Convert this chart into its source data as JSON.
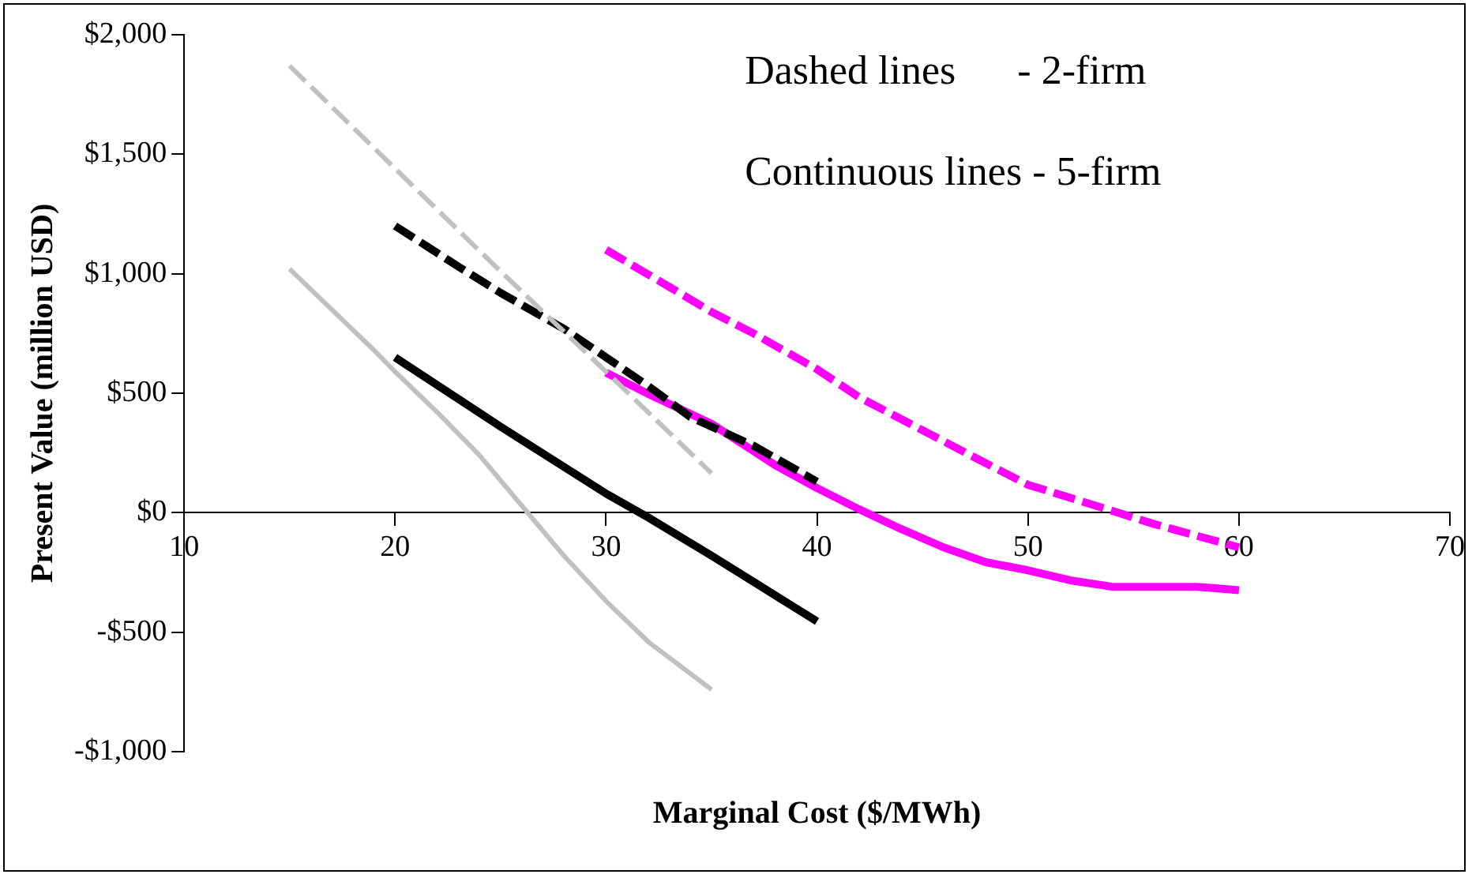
{
  "chart_data": {
    "type": "line",
    "xlabel": "Marginal Cost ($/MWh)",
    "ylabel": "Present Value (million USD)",
    "xlim": [
      10,
      70
    ],
    "xticks": [
      10,
      20,
      30,
      40,
      50,
      60,
      70
    ],
    "ylim": [
      -1000,
      2000
    ],
    "yticks": [
      {
        "value": -1000,
        "label": "-$1,000"
      },
      {
        "value": -500,
        "label": "-$500"
      },
      {
        "value": 0,
        "label": "$0"
      },
      {
        "value": 500,
        "label": "$500"
      },
      {
        "value": 1000,
        "label": "$1,000"
      },
      {
        "value": 1500,
        "label": "$1,500"
      },
      {
        "value": 2000,
        "label": "$2,000"
      }
    ],
    "grid": false,
    "legend": false,
    "marker": "none",
    "annotations": [
      "Dashed lines      - 2-firm",
      "Continuous lines - 5-firm"
    ],
    "series": [
      {
        "color": "#c0c0c0",
        "line_style": "dashed",
        "x": [
          15,
          20,
          25,
          30,
          35
        ],
        "values": [
          1870,
          1440,
          1010,
          590,
          165
        ]
      },
      {
        "color": "#000000",
        "line_style": "dashed",
        "x": [
          20,
          23,
          25,
          28,
          30,
          32,
          34,
          37,
          40
        ],
        "values": [
          1200,
          1030,
          920,
          770,
          650,
          530,
          400,
          280,
          130
        ]
      },
      {
        "color": "#ff00ff",
        "line_style": "dashed",
        "x": [
          30,
          33,
          35,
          37,
          40,
          42,
          45,
          48,
          50,
          53,
          56,
          60
        ],
        "values": [
          1100,
          945,
          840,
          750,
          600,
          483,
          345,
          207,
          117,
          35,
          -48,
          -145
        ]
      },
      {
        "color": "#c0c0c0",
        "line_style": "solid",
        "x": [
          15,
          17,
          19,
          20,
          22,
          24,
          26,
          28,
          30,
          32,
          35
        ],
        "values": [
          1020,
          850,
          680,
          590,
          420,
          240,
          30,
          -180,
          -370,
          -540,
          -740
        ]
      },
      {
        "color": "#000000",
        "line_style": "solid",
        "x": [
          20,
          25,
          30,
          32,
          35,
          37,
          40
        ],
        "values": [
          650,
          360,
          80,
          -20,
          -180,
          -290,
          -455
        ]
      },
      {
        "color": "#ff00ff",
        "line_style": "solid",
        "x": [
          30,
          32,
          35,
          38,
          40,
          42,
          44,
          46,
          48,
          50,
          52,
          54,
          56,
          58,
          60
        ],
        "values": [
          586,
          497,
          372,
          200,
          103,
          14,
          -69,
          -145,
          -207,
          -241,
          -283,
          -310,
          -310,
          -310,
          -324
        ]
      }
    ]
  }
}
